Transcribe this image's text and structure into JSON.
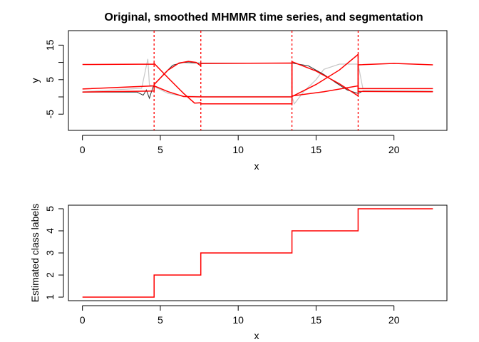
{
  "chart_data": [
    {
      "type": "line",
      "title": "Original, smoothed MHMMR time series, and segmentation",
      "xlabel": "x",
      "ylabel": "y",
      "xlim": [
        -0.9,
        23.4
      ],
      "ylim": [
        -9.7,
        19.2
      ],
      "xticks": [
        0,
        5,
        10,
        15,
        20
      ],
      "yticks": [
        -5,
        5,
        15
      ],
      "grid": false,
      "colors": {
        "regression": "#ff0000",
        "original": "#c8c8c8",
        "smoothed": "#333333",
        "changepoint": "#ff0000"
      },
      "changepoints": [
        4.6,
        7.6,
        13.45,
        17.7
      ],
      "series": [
        {
          "values": [
            [
              0,
              9.4
            ],
            [
              4.6,
              9.5
            ],
            [
              4.6,
              9.7
            ],
            [
              5.5,
              5.5
            ],
            [
              6.5,
              1.0
            ],
            [
              7.2,
              -1.8
            ],
            [
              7.6,
              -1.7
            ],
            [
              7.6,
              -2.0
            ],
            [
              13.45,
              -2.0
            ],
            [
              13.45,
              10.2
            ],
            [
              15,
              7.5
            ],
            [
              16.5,
              3.8
            ],
            [
              17.7,
              0.3
            ],
            [
              17.7,
              9.3
            ],
            [
              20,
              9.7
            ],
            [
              22.5,
              9.3
            ]
          ]
        },
        {
          "values": [
            [
              0,
              2.3
            ],
            [
              4.6,
              3.2
            ],
            [
              4.6,
              3.6
            ],
            [
              5.5,
              7.8
            ],
            [
              6.2,
              9.8
            ],
            [
              6.8,
              10.3
            ],
            [
              7.3,
              10.0
            ],
            [
              7.6,
              9.0
            ],
            [
              7.6,
              9.7
            ],
            [
              13.45,
              9.8
            ],
            [
              13.45,
              0.1
            ],
            [
              15,
              3.6
            ],
            [
              16.5,
              7.8
            ],
            [
              17.7,
              12.3
            ],
            [
              17.7,
              2.4
            ],
            [
              22.5,
              2.4
            ]
          ]
        },
        {
          "values": [
            [
              0,
              1.4
            ],
            [
              4.6,
              1.7
            ],
            [
              4.6,
              3.2
            ],
            [
              5.5,
              1.5
            ],
            [
              6.5,
              0.1
            ],
            [
              7.6,
              0
            ],
            [
              13.45,
              0
            ],
            [
              13.45,
              0.3
            ],
            [
              15.5,
              1.5
            ],
            [
              17.7,
              3.2
            ],
            [
              17.7,
              1.6
            ],
            [
              22.5,
              1.5
            ]
          ]
        }
      ],
      "data_traces": [
        {
          "name_hidden": true,
          "values": [
            [
              0,
              1.4
            ],
            [
              3.5,
              1.4
            ],
            [
              3.9,
              0.5
            ],
            [
              4.1,
              2.0
            ],
            [
              4.3,
              -0.4
            ],
            [
              4.5,
              2.5
            ],
            [
              4.6,
              3.5
            ],
            [
              5.2,
              6.5
            ],
            [
              5.8,
              9.2
            ],
            [
              6.5,
              10.0
            ],
            [
              7.5,
              9.8
            ],
            [
              13.45,
              9.8
            ],
            [
              14.5,
              9.0
            ],
            [
              15.5,
              6.5
            ],
            [
              16.3,
              4.0
            ],
            [
              17,
              2.0
            ],
            [
              17.7,
              1.0
            ],
            [
              18,
              1.7
            ],
            [
              22.5,
              1.6
            ]
          ]
        },
        {
          "name_hidden": true,
          "values": [
            [
              0,
              1.5
            ],
            [
              3.8,
              2.5
            ],
            [
              4.2,
              11.0
            ],
            [
              4.3,
              3.5
            ],
            [
              4.6,
              3.0
            ],
            [
              5.5,
              1.0
            ],
            [
              6.5,
              0.2
            ],
            [
              7.6,
              0.1
            ],
            [
              13.45,
              0.1
            ],
            [
              13.6,
              -2.0
            ],
            [
              14.2,
              1.5
            ],
            [
              15,
              5.0
            ],
            [
              15.5,
              8.0
            ],
            [
              16.5,
              9.5
            ],
            [
              17.7,
              9.5
            ],
            [
              18,
              2.5
            ],
            [
              22.5,
              2.4
            ]
          ]
        }
      ]
    },
    {
      "type": "line",
      "xlabel": "x",
      "ylabel": "Estimated class labels",
      "xlim": [
        -0.9,
        23.4
      ],
      "ylim": [
        0.84,
        5.16
      ],
      "xticks": [
        0,
        5,
        10,
        15,
        20
      ],
      "yticks": [
        1,
        2,
        3,
        4,
        5
      ],
      "grid": false,
      "colors": {
        "line": "#ff0000"
      },
      "steps": [
        [
          0,
          1
        ],
        [
          4.6,
          2
        ],
        [
          7.6,
          3
        ],
        [
          13.45,
          4
        ],
        [
          17.7,
          5
        ],
        [
          22.5,
          5
        ]
      ]
    }
  ]
}
